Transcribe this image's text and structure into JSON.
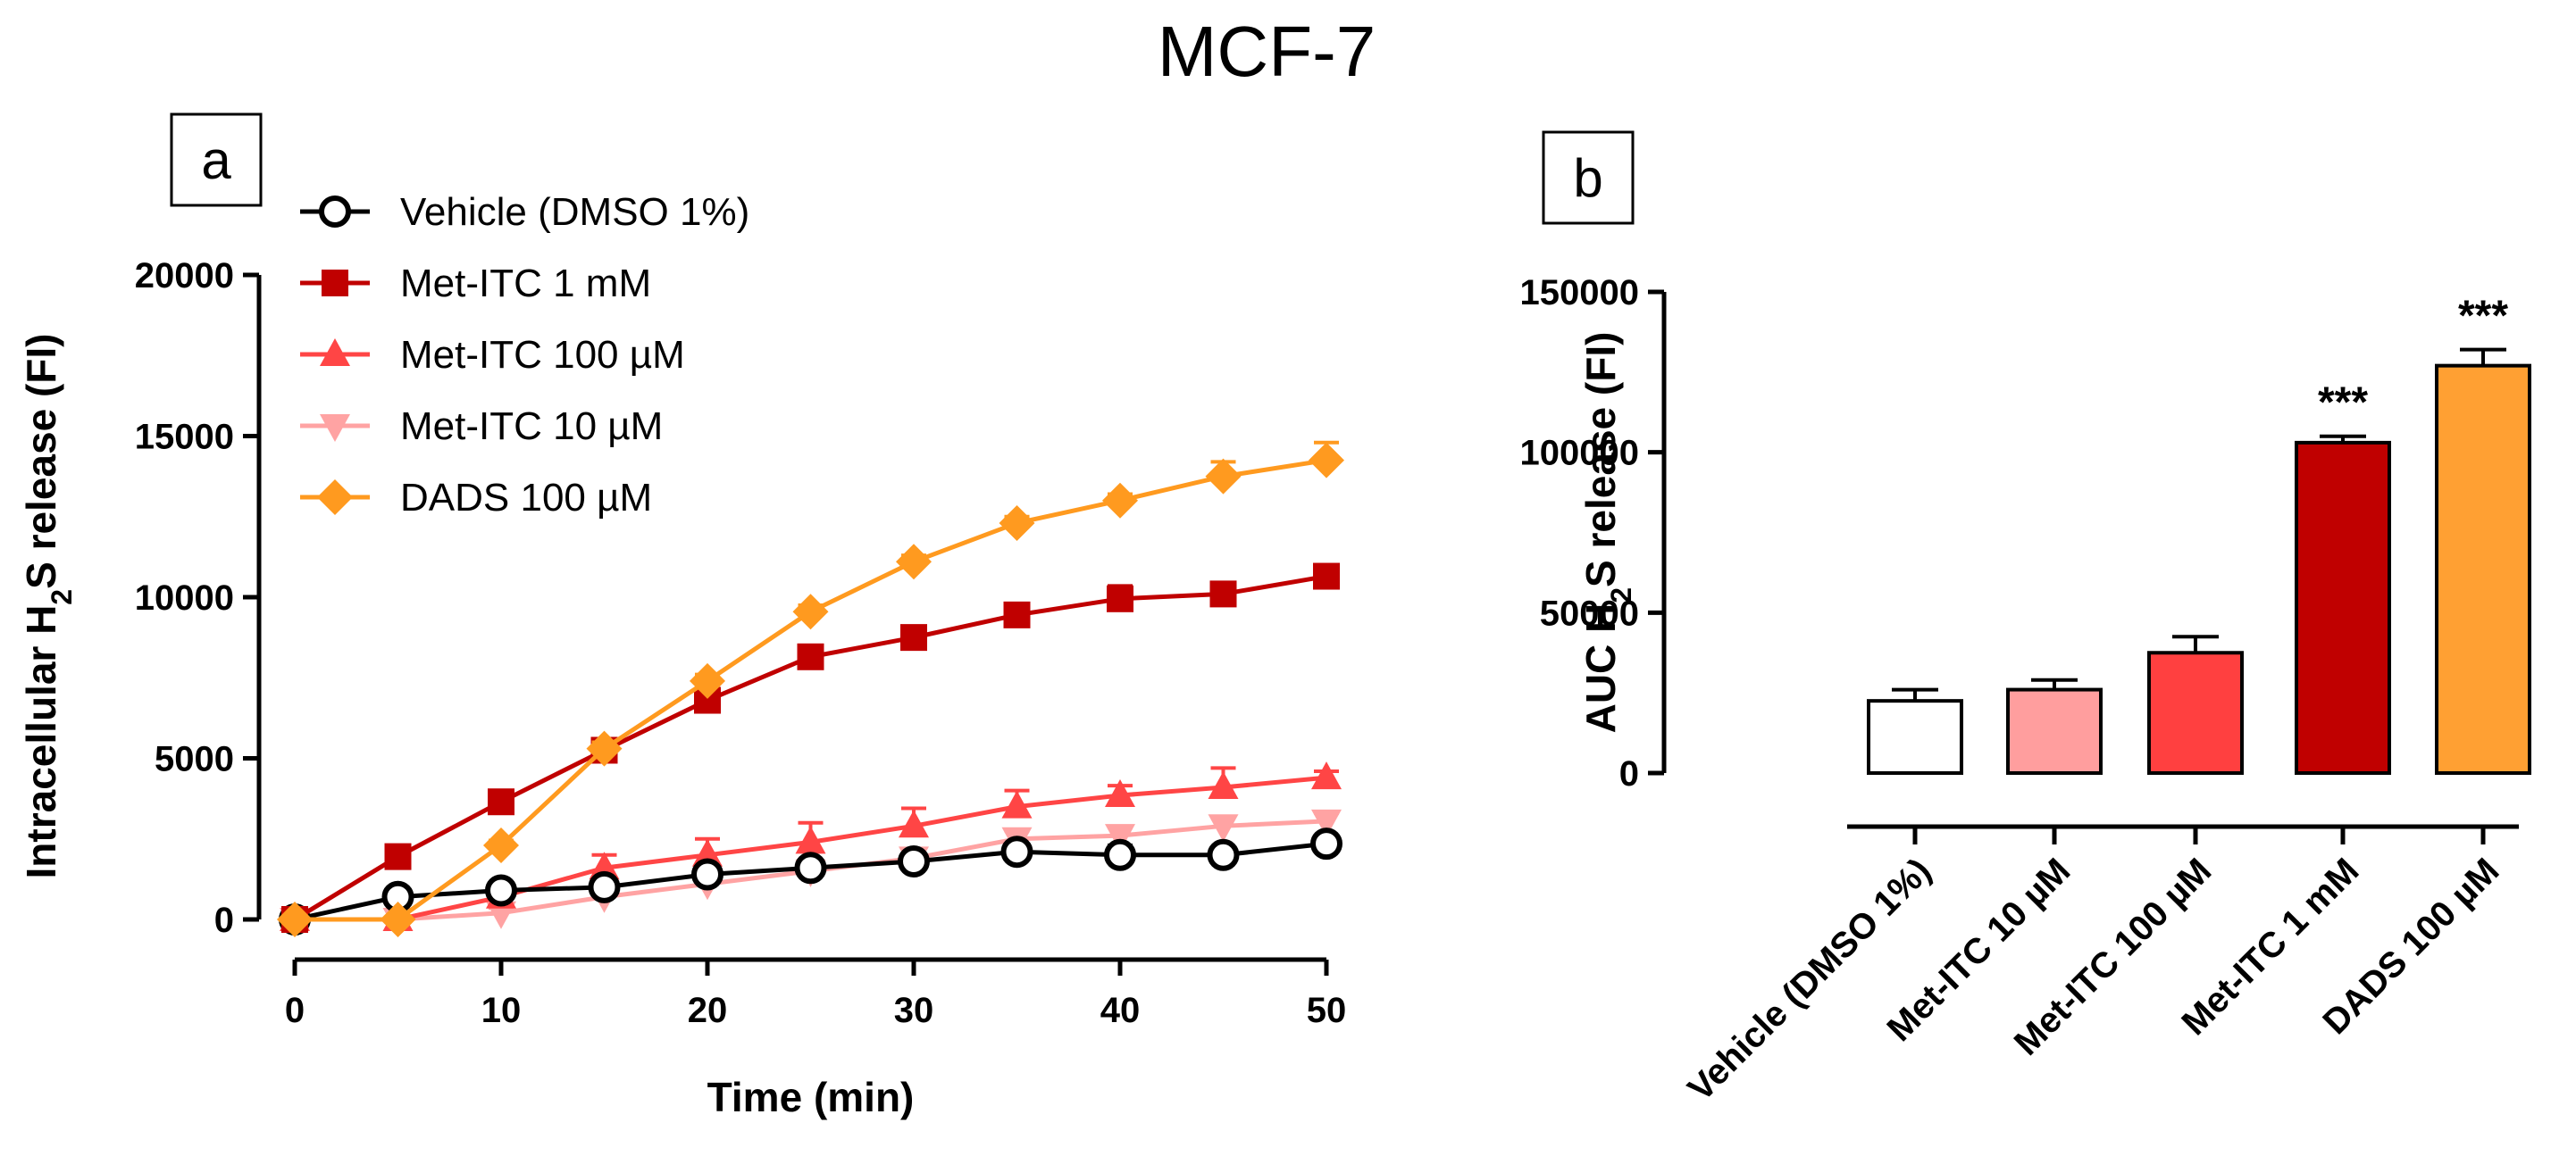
{
  "figure_title": "MCF-7",
  "chart_data": [
    {
      "panel": "a",
      "type": "line",
      "xlabel": "Time (min)",
      "ylabel_parts": [
        "Intracellular H",
        "2",
        "S release (FI)"
      ],
      "xlim": [
        0,
        50
      ],
      "ylim": [
        0,
        20000
      ],
      "x_ticks": [
        0,
        10,
        20,
        30,
        40,
        50
      ],
      "y_ticks": [
        0,
        5000,
        10000,
        15000,
        20000
      ],
      "x": [
        0,
        5,
        10,
        15,
        20,
        25,
        30,
        35,
        40,
        45,
        50
      ],
      "series": [
        {
          "name": "Vehicle (DMSO 1%)",
          "color": "#000000",
          "marker": "circle-open",
          "values": [
            0,
            700,
            900,
            1000,
            1400,
            1600,
            1800,
            2100,
            2000,
            2000,
            2350
          ],
          "errors": [
            0,
            100,
            150,
            100,
            150,
            200,
            250,
            200,
            300,
            200,
            200
          ]
        },
        {
          "name": "Met-ITC 1 mM",
          "color": "#c00000",
          "marker": "square",
          "values": [
            0,
            1950,
            3650,
            5250,
            6800,
            8150,
            8750,
            9450,
            9950,
            10100,
            10650
          ],
          "errors": [
            0,
            100,
            150,
            150,
            200,
            200,
            200,
            200,
            400,
            200,
            300
          ]
        },
        {
          "name": "Met-ITC 100 µM",
          "color": "#ff4545",
          "marker": "triangle-up",
          "values": [
            0,
            0,
            700,
            1600,
            2000,
            2400,
            2900,
            3500,
            3850,
            4100,
            4400
          ],
          "errors": [
            0,
            100,
            200,
            400,
            500,
            600,
            550,
            500,
            300,
            600,
            200
          ]
        },
        {
          "name": "Met-ITC 10 µM",
          "color": "#ffa3a3",
          "marker": "triangle-down",
          "values": [
            0,
            0,
            200,
            700,
            1100,
            1500,
            1900,
            2500,
            2600,
            2900,
            3050
          ],
          "errors": [
            0,
            100,
            150,
            300,
            300,
            350,
            300,
            250,
            250,
            300,
            250
          ]
        },
        {
          "name": "DADS 100 µM",
          "color": "#ff9a1f",
          "marker": "diamond",
          "values": [
            0,
            0,
            2300,
            5300,
            7400,
            9550,
            11100,
            12300,
            13000,
            13750,
            14250
          ],
          "errors": [
            0,
            100,
            150,
            200,
            200,
            200,
            200,
            200,
            200,
            450,
            550
          ]
        }
      ]
    },
    {
      "panel": "b",
      "type": "bar",
      "ylabel_parts": [
        "AUC H",
        "2",
        "S release (FI)"
      ],
      "ylim": [
        0,
        150000
      ],
      "y_ticks": [
        0,
        50000,
        100000,
        150000
      ],
      "categories": [
        "Vehicle (DMSO 1%)",
        "Met-ITC 10 µM",
        "Met-ITC 100 µM",
        "Met-ITC 1 mM",
        "DADS 100 µM"
      ],
      "values": [
        22500,
        26000,
        37500,
        103000,
        127000
      ],
      "errors": [
        3500,
        3000,
        5000,
        2000,
        5000
      ],
      "colors": [
        "#ffffff",
        "#ff9e9e",
        "#ff4040",
        "#c00000",
        "#ffa033"
      ],
      "significance": [
        "",
        "",
        "",
        "***",
        "***"
      ]
    }
  ]
}
